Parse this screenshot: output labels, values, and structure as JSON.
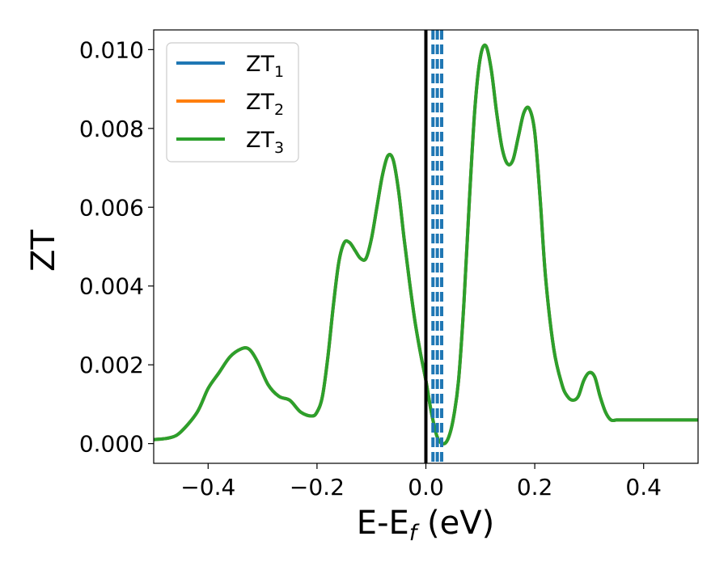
{
  "chart_data": {
    "type": "line",
    "xlabel_main": "E-E",
    "xlabel_sub": "f",
    "xlabel_unit": " (eV)",
    "ylabel": "ZT",
    "xlim": [
      -0.5,
      0.5
    ],
    "ylim": [
      -0.0005,
      0.0105
    ],
    "xticks": [
      -0.4,
      -0.2,
      0.0,
      0.2,
      0.4
    ],
    "xtick_labels": [
      "−0.4",
      "−0.2",
      "0.0",
      "0.2",
      "0.4"
    ],
    "yticks": [
      0.0,
      0.002,
      0.004,
      0.006,
      0.008,
      0.01
    ],
    "ytick_labels": [
      "0.000",
      "0.002",
      "0.004",
      "0.006",
      "0.008",
      "0.010"
    ],
    "grid": false,
    "legend_position": "top-left",
    "vline_solid": {
      "x": 0.0,
      "color": "#000000"
    },
    "vlines_dashed": {
      "x": [
        0.013,
        0.021,
        0.029
      ],
      "color": "#1f77b4"
    },
    "series": [
      {
        "name": "ZT",
        "sub": "1",
        "color": "#1f77b4"
      },
      {
        "name": "ZT",
        "sub": "2",
        "color": "#ff7f0e"
      },
      {
        "name": "ZT",
        "sub": "3",
        "color": "#2ca02c"
      }
    ],
    "curve": {
      "x": [
        -0.5,
        -0.47,
        -0.45,
        -0.42,
        -0.4,
        -0.38,
        -0.36,
        -0.34,
        -0.325,
        -0.31,
        -0.29,
        -0.27,
        -0.25,
        -0.23,
        -0.21,
        -0.2,
        -0.19,
        -0.18,
        -0.17,
        -0.16,
        -0.15,
        -0.14,
        -0.13,
        -0.12,
        -0.11,
        -0.1,
        -0.09,
        -0.08,
        -0.07,
        -0.06,
        -0.05,
        -0.04,
        -0.03,
        -0.02,
        -0.01,
        0.0,
        0.01,
        0.02,
        0.03,
        0.04,
        0.05,
        0.06,
        0.07,
        0.08,
        0.09,
        0.1,
        0.11,
        0.12,
        0.13,
        0.14,
        0.15,
        0.16,
        0.17,
        0.18,
        0.19,
        0.2,
        0.21,
        0.22,
        0.235,
        0.25,
        0.26,
        0.27,
        0.28,
        0.29,
        0.3,
        0.31,
        0.32,
        0.33,
        0.34,
        0.35,
        0.36,
        0.37,
        0.38,
        0.39,
        0.4,
        0.41,
        0.425,
        0.44,
        0.45,
        0.46,
        0.47,
        0.48,
        0.49,
        0.5
      ],
      "y": [
        0.0001,
        0.00015,
        0.0003,
        0.0008,
        0.0014,
        0.0018,
        0.0022,
        0.0024,
        0.0024,
        0.0021,
        0.0015,
        0.0012,
        0.0011,
        0.0008,
        0.0007,
        0.0008,
        0.0012,
        0.0022,
        0.0035,
        0.0046,
        0.0051,
        0.0051,
        0.0049,
        0.0047,
        0.0047,
        0.0052,
        0.006,
        0.0068,
        0.0073,
        0.0072,
        0.0064,
        0.0052,
        0.0041,
        0.0031,
        0.0023,
        0.0016,
        0.0008,
        0.0002,
        0.0,
        0.0001,
        0.0006,
        0.0016,
        0.0036,
        0.0062,
        0.0085,
        0.0098,
        0.0101,
        0.0095,
        0.0084,
        0.0075,
        0.0071,
        0.0072,
        0.0078,
        0.0084,
        0.0085,
        0.0079,
        0.0062,
        0.0042,
        0.0024,
        0.0015,
        0.0012,
        0.0011,
        0.0012,
        0.0016,
        0.0018,
        0.0017,
        0.0012,
        0.0008,
        0.0006,
        0.0006,
        0.0006,
        0.0006,
        0.0006,
        0.0006,
        0.0006,
        0.0006,
        0.0006,
        0.0006,
        0.0006,
        0.0006,
        0.0006,
        0.0006,
        0.0006,
        0.0006
      ]
    }
  }
}
